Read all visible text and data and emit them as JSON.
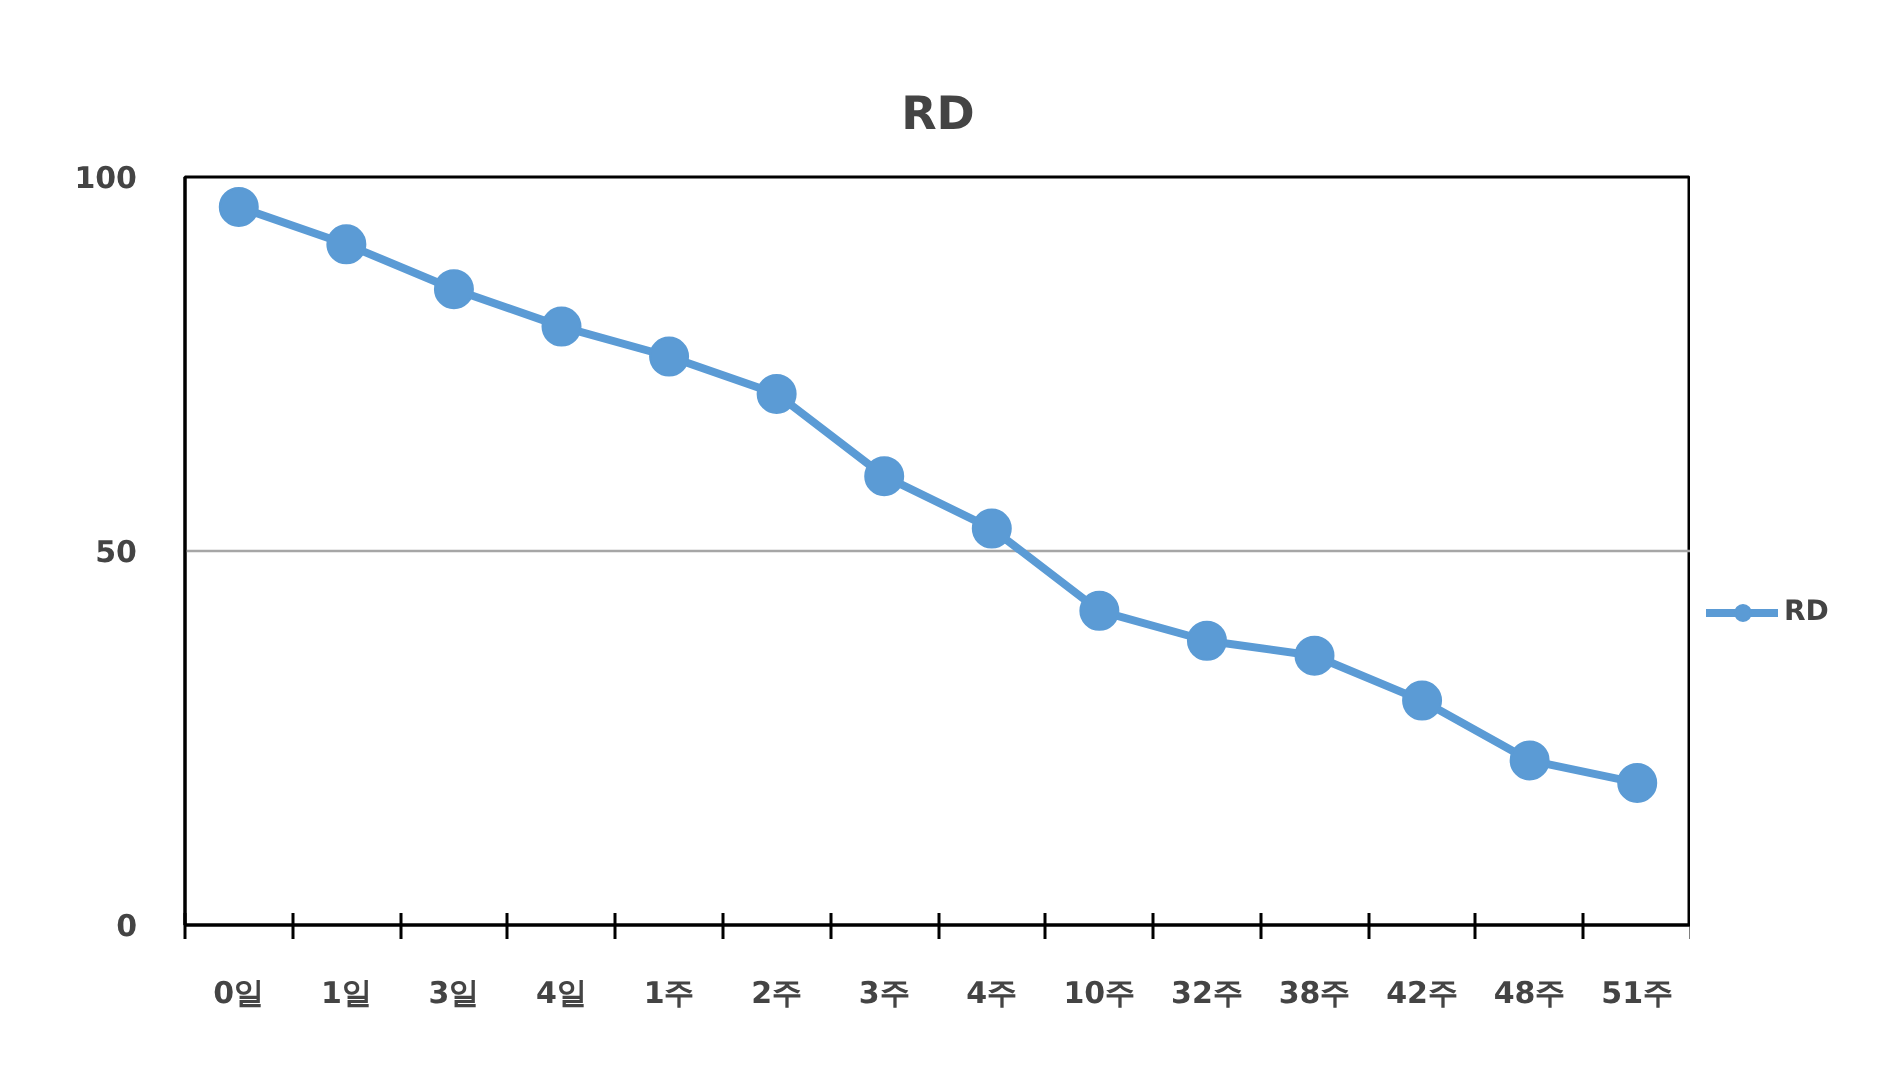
{
  "chart_data": {
    "type": "line",
    "title": "RD",
    "categories": [
      "0일",
      "1일",
      "3일",
      "4일",
      "1주",
      "2주",
      "3주",
      "4주",
      "10주",
      "32주",
      "38주",
      "42주",
      "48주",
      "51주"
    ],
    "series": [
      {
        "name": "RD",
        "color": "#5b9bd5",
        "values": [
          96,
          91,
          85,
          80,
          76,
          71,
          60,
          53,
          42,
          38,
          36,
          30,
          22,
          19
        ]
      }
    ],
    "ylim": [
      0,
      100
    ],
    "yticks": [
      0,
      50,
      100
    ],
    "grid": "y",
    "legend": "right",
    "marker": "circle",
    "line_style": "solid"
  }
}
